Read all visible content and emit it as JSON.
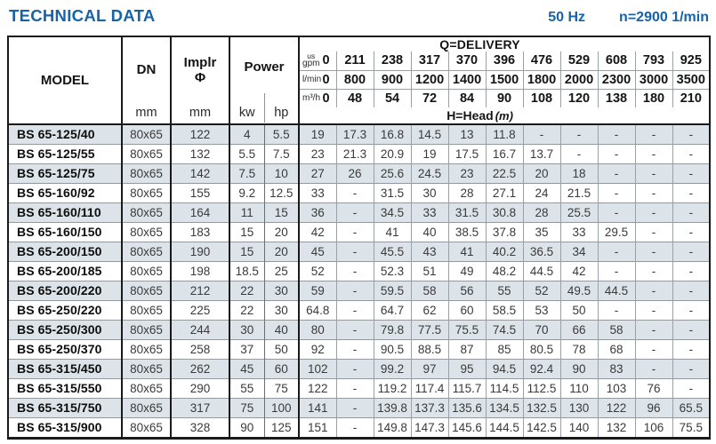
{
  "page": {
    "title": "TECHNICAL DATA",
    "frequency": "50 Hz",
    "speed": "n=2900 1/min"
  },
  "colors": {
    "accent_blue": "#1763A8",
    "row_shade": "#DCE3E9",
    "grid_line": "#9AA0A6",
    "border_dark": "#1A1A1A"
  },
  "table": {
    "columns": {
      "model_label": "MODEL",
      "dn_label": "DN",
      "dn_unit": "mm",
      "impeller_label": "Implr",
      "impeller_symbol": "Φ",
      "impeller_unit": "mm",
      "power_label": "Power",
      "power_sub": [
        "kw",
        "hp"
      ]
    },
    "delivery": {
      "title": "Q=DELIVERY",
      "head_label": "H=Head",
      "head_unit": "(m)",
      "unit_rows": [
        {
          "label_top": "us",
          "label": "gpm",
          "values": [
            "0",
            "211",
            "238",
            "317",
            "370",
            "396",
            "476",
            "529",
            "608",
            "793",
            "925"
          ]
        },
        {
          "label": "l/min",
          "values": [
            "0",
            "800",
            "900",
            "1200",
            "1400",
            "1500",
            "1800",
            "2000",
            "2300",
            "3000",
            "3500"
          ]
        },
        {
          "label": "m³/h",
          "values": [
            "0",
            "48",
            "54",
            "72",
            "84",
            "90",
            "108",
            "120",
            "138",
            "180",
            "210"
          ]
        }
      ]
    },
    "rows": [
      {
        "model": "BS 65-125/40",
        "dn": "80x65",
        "impeller": "122",
        "kw": "4",
        "hp": "5.5",
        "head": [
          "19",
          "17.3",
          "16.8",
          "14.5",
          "13",
          "11.8",
          "-",
          "-",
          "-",
          "-",
          "-"
        ]
      },
      {
        "model": "BS 65-125/55",
        "dn": "80x65",
        "impeller": "132",
        "kw": "5.5",
        "hp": "7.5",
        "head": [
          "23",
          "21.3",
          "20.9",
          "19",
          "17.5",
          "16.7",
          "13.7",
          "-",
          "-",
          "-",
          "-"
        ]
      },
      {
        "model": "BS 65-125/75",
        "dn": "80x65",
        "impeller": "142",
        "kw": "7.5",
        "hp": "10",
        "head": [
          "27",
          "26",
          "25.6",
          "24.5",
          "23",
          "22.5",
          "20",
          "18",
          "-",
          "-",
          "-"
        ]
      },
      {
        "model": "BS 65-160/92",
        "dn": "80x65",
        "impeller": "155",
        "kw": "9.2",
        "hp": "12.5",
        "head": [
          "33",
          "-",
          "31.5",
          "30",
          "28",
          "27.1",
          "24",
          "21.5",
          "-",
          "-",
          "-"
        ]
      },
      {
        "model": "BS 65-160/110",
        "dn": "80x65",
        "impeller": "164",
        "kw": "11",
        "hp": "15",
        "head": [
          "36",
          "-",
          "34.5",
          "33",
          "31.5",
          "30.8",
          "28",
          "25.5",
          "-",
          "-",
          "-"
        ]
      },
      {
        "model": "BS 65-160/150",
        "dn": "80x65",
        "impeller": "183",
        "kw": "15",
        "hp": "20",
        "head": [
          "42",
          "-",
          "41",
          "40",
          "38.5",
          "37.8",
          "35",
          "33",
          "29.5",
          "-",
          "-"
        ]
      },
      {
        "model": "BS 65-200/150",
        "dn": "80x65",
        "impeller": "190",
        "kw": "15",
        "hp": "20",
        "head": [
          "45",
          "-",
          "45.5",
          "43",
          "41",
          "40.2",
          "36.5",
          "34",
          "-",
          "-",
          "-"
        ]
      },
      {
        "model": "BS 65-200/185",
        "dn": "80x65",
        "impeller": "198",
        "kw": "18.5",
        "hp": "25",
        "head": [
          "52",
          "-",
          "52.3",
          "51",
          "49",
          "48.2",
          "44.5",
          "42",
          "-",
          "-",
          "-"
        ]
      },
      {
        "model": "BS 65-200/220",
        "dn": "80x65",
        "impeller": "212",
        "kw": "22",
        "hp": "30",
        "head": [
          "59",
          "-",
          "59.5",
          "58",
          "56",
          "55",
          "52",
          "49.5",
          "44.5",
          "-",
          "-"
        ]
      },
      {
        "model": "BS 65-250/220",
        "dn": "80x65",
        "impeller": "225",
        "kw": "22",
        "hp": "30",
        "head": [
          "64.8",
          "-",
          "64.7",
          "62",
          "60",
          "58.5",
          "53",
          "50",
          "-",
          "-",
          "-"
        ]
      },
      {
        "model": "BS 65-250/300",
        "dn": "80x65",
        "impeller": "244",
        "kw": "30",
        "hp": "40",
        "head": [
          "80",
          "-",
          "79.8",
          "77.5",
          "75.5",
          "74.5",
          "70",
          "66",
          "58",
          "-",
          "-"
        ]
      },
      {
        "model": "BS 65-250/370",
        "dn": "80x65",
        "impeller": "258",
        "kw": "37",
        "hp": "50",
        "head": [
          "92",
          "-",
          "90.5",
          "88.5",
          "87",
          "85",
          "80.5",
          "78",
          "68",
          "-",
          "-"
        ]
      },
      {
        "model": "BS 65-315/450",
        "dn": "80x65",
        "impeller": "262",
        "kw": "45",
        "hp": "60",
        "head": [
          "102",
          "-",
          "99.2",
          "97",
          "95",
          "94.5",
          "92.4",
          "90",
          "83",
          "-",
          "-"
        ]
      },
      {
        "model": "BS 65-315/550",
        "dn": "80x65",
        "impeller": "290",
        "kw": "55",
        "hp": "75",
        "head": [
          "122",
          "-",
          "119.2",
          "117.4",
          "115.7",
          "114.5",
          "112.5",
          "110",
          "103",
          "76",
          "-"
        ]
      },
      {
        "model": "BS 65-315/750",
        "dn": "80x65",
        "impeller": "317",
        "kw": "75",
        "hp": "100",
        "head": [
          "141",
          "-",
          "139.8",
          "137.3",
          "135.6",
          "134.5",
          "132.5",
          "130",
          "122",
          "96",
          "65.5"
        ]
      },
      {
        "model": "BS 65-315/900",
        "dn": "80x65",
        "impeller": "328",
        "kw": "90",
        "hp": "125",
        "head": [
          "151",
          "-",
          "149.8",
          "147.3",
          "145.6",
          "144.5",
          "142.5",
          "140",
          "132",
          "106",
          "75.5"
        ]
      }
    ]
  }
}
